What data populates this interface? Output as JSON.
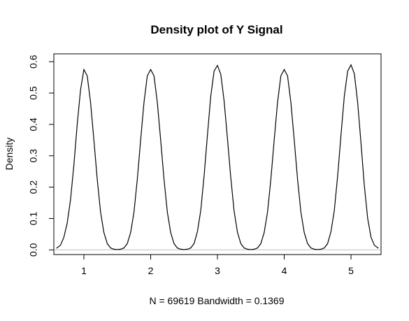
{
  "chart_data": {
    "type": "line",
    "title": "Density plot of Y Signal",
    "xlabel": "N = 69619   Bandwidth = 0.1369",
    "ylabel": "Density",
    "xlim": [
      0.55,
      5.45
    ],
    "ylim": [
      -0.015,
      0.625
    ],
    "xticks": [
      "1",
      "2",
      "3",
      "4",
      "5"
    ],
    "yticks": [
      "0.0",
      "0.1",
      "0.2",
      "0.3",
      "0.4",
      "0.5",
      "0.6"
    ],
    "grid": false,
    "baseline_y": 0,
    "series": [
      {
        "x": [
          0.59,
          0.65,
          0.7,
          0.75,
          0.8,
          0.85,
          0.9,
          0.95,
          1.0,
          1.05,
          1.1,
          1.15,
          1.2,
          1.25,
          1.3,
          1.35,
          1.4,
          1.45,
          1.5,
          1.55,
          1.6,
          1.65,
          1.7,
          1.75,
          1.8,
          1.85,
          1.9,
          1.95,
          2.0,
          2.05,
          2.1,
          2.15,
          2.2,
          2.25,
          2.3,
          2.35,
          2.4,
          2.45,
          2.5,
          2.55,
          2.6,
          2.65,
          2.7,
          2.75,
          2.8,
          2.85,
          2.9,
          2.95,
          3.0,
          3.05,
          3.1,
          3.15,
          3.2,
          3.25,
          3.3,
          3.35,
          3.4,
          3.45,
          3.5,
          3.55,
          3.6,
          3.65,
          3.7,
          3.75,
          3.8,
          3.85,
          3.9,
          3.95,
          4.0,
          4.05,
          4.1,
          4.15,
          4.2,
          4.25,
          4.3,
          4.35,
          4.4,
          4.45,
          4.5,
          4.55,
          4.6,
          4.65,
          4.7,
          4.75,
          4.8,
          4.85,
          4.9,
          4.95,
          5.0,
          5.05,
          5.1,
          5.15,
          5.2,
          5.25,
          5.3,
          5.35,
          5.41
        ],
        "y": [
          0.005,
          0.015,
          0.04,
          0.085,
          0.16,
          0.27,
          0.4,
          0.51,
          0.575,
          0.555,
          0.47,
          0.35,
          0.225,
          0.12,
          0.055,
          0.02,
          0.006,
          0.002,
          0.001,
          0.002,
          0.006,
          0.02,
          0.055,
          0.12,
          0.225,
          0.35,
          0.47,
          0.555,
          0.575,
          0.555,
          0.47,
          0.35,
          0.225,
          0.12,
          0.055,
          0.02,
          0.006,
          0.002,
          0.001,
          0.002,
          0.006,
          0.02,
          0.058,
          0.125,
          0.235,
          0.365,
          0.49,
          0.57,
          0.588,
          0.56,
          0.475,
          0.355,
          0.23,
          0.123,
          0.056,
          0.02,
          0.006,
          0.002,
          0.001,
          0.002,
          0.006,
          0.02,
          0.055,
          0.12,
          0.225,
          0.35,
          0.47,
          0.555,
          0.575,
          0.555,
          0.47,
          0.35,
          0.225,
          0.12,
          0.055,
          0.02,
          0.006,
          0.002,
          0.001,
          0.002,
          0.006,
          0.02,
          0.058,
          0.125,
          0.235,
          0.365,
          0.49,
          0.57,
          0.59,
          0.562,
          0.47,
          0.34,
          0.205,
          0.1,
          0.04,
          0.015,
          0.005
        ]
      }
    ]
  }
}
